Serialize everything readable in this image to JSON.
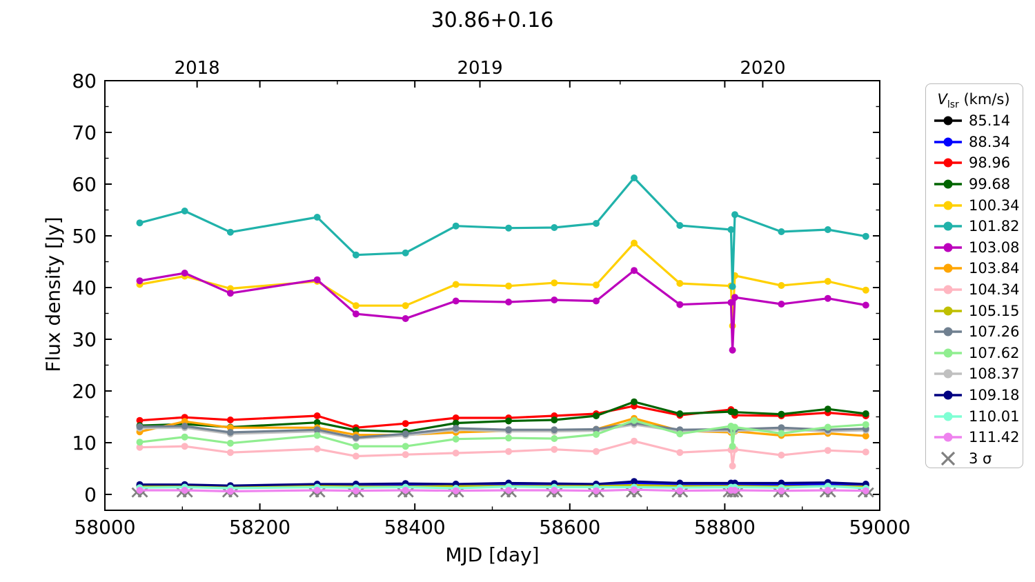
{
  "title": "30.86+0.16",
  "axes": {
    "xlabel": "MJD [day]",
    "ylabel": "Flux density [Jy]",
    "xlim": [
      58000,
      59000
    ],
    "ylim": [
      -3.07,
      80
    ],
    "x_major_ticks": [
      58000,
      58200,
      58400,
      58600,
      58800,
      59000
    ],
    "x_minor_ticks": [
      58100,
      58300,
      58500,
      58700,
      58900
    ],
    "y_major_ticks": [
      0,
      10,
      20,
      30,
      40,
      50,
      60,
      70,
      80
    ],
    "y_minor_ticks": [
      5,
      15,
      25,
      35,
      45,
      55,
      65,
      75
    ],
    "top_ticks": [
      {
        "label": "2018",
        "mjd": 58119
      },
      {
        "label": "2019",
        "mjd": 58484
      },
      {
        "label": "2020",
        "mjd": 58849
      }
    ],
    "top_minor_ticks": [
      58300,
      58665
    ]
  },
  "legend": {
    "title_var": "V",
    "title_sub": "lsr",
    "title_unit": " (km/s)"
  },
  "chart_data": {
    "type": "line",
    "title": "30.86+0.16",
    "xlabel": "MJD [day]",
    "ylabel": "Flux density [Jy]",
    "xlim": [
      58000,
      59000
    ],
    "ylim": [
      -3.07,
      80
    ],
    "legend_title": "Vlsr (km/s)",
    "series": [
      {
        "label": "85.14",
        "color": "#000000",
        "z": 1,
        "x": [
          58045,
          58103,
          58162,
          58274,
          58324,
          58388,
          58453,
          58521,
          58580,
          58634,
          58683,
          58742,
          58808,
          58813,
          58873,
          58933,
          58982
        ],
        "y": [
          1.7,
          1.8,
          1.6,
          1.8,
          1.8,
          1.9,
          1.8,
          2.0,
          1.9,
          1.8,
          2.2,
          2.0,
          2.0,
          2.0,
          2.0,
          2.1,
          1.8
        ]
      },
      {
        "label": "88.34",
        "color": "#0000FF",
        "z": 2,
        "x": [
          58045,
          58103,
          58162,
          58274,
          58324,
          58388,
          58453,
          58521,
          58580,
          58634,
          58683,
          58742,
          58808,
          58813,
          58873,
          58933,
          58982
        ],
        "y": [
          1.6,
          1.7,
          1.5,
          1.7,
          1.7,
          1.8,
          1.7,
          1.9,
          1.8,
          1.7,
          2.1,
          1.9,
          1.9,
          1.9,
          1.9,
          2.0,
          1.7
        ]
      },
      {
        "label": "98.96",
        "color": "#FF0000",
        "z": 3,
        "x": [
          58045,
          58103,
          58162,
          58274,
          58324,
          58388,
          58453,
          58521,
          58580,
          58634,
          58683,
          58742,
          58808,
          58813,
          58873,
          58933,
          58982
        ],
        "y": [
          14.3,
          14.9,
          14.4,
          15.2,
          12.9,
          13.7,
          14.8,
          14.8,
          15.2,
          15.6,
          17.1,
          15.3,
          16.4,
          15.3,
          15.2,
          15.8,
          15.2
        ]
      },
      {
        "label": "99.68",
        "color": "#006400",
        "z": 4,
        "x": [
          58045,
          58103,
          58162,
          58274,
          58324,
          58388,
          58453,
          58521,
          58580,
          58634,
          58683,
          58742,
          58808,
          58813,
          58873,
          58933,
          58982
        ],
        "y": [
          13.3,
          13.6,
          13.0,
          13.9,
          12.4,
          12.1,
          13.8,
          14.2,
          14.4,
          15.2,
          17.9,
          15.6,
          16.0,
          15.9,
          15.5,
          16.5,
          15.6
        ]
      },
      {
        "label": "100.34",
        "color": "#FFD000",
        "z": 5,
        "x": [
          58045,
          58103,
          58162,
          58274,
          58324,
          58388,
          58453,
          58521,
          58580,
          58634,
          58683,
          58742,
          58808,
          58810,
          58813,
          58873,
          58933,
          58982
        ],
        "y": [
          40.6,
          42.2,
          39.8,
          41.2,
          36.5,
          36.5,
          40.6,
          40.3,
          40.9,
          40.5,
          48.6,
          40.8,
          40.3,
          32.6,
          42.3,
          40.4,
          41.2,
          39.5
        ]
      },
      {
        "label": "101.82",
        "color": "#20B2AA",
        "z": 6,
        "x": [
          58045,
          58103,
          58162,
          58274,
          58324,
          58388,
          58453,
          58521,
          58580,
          58634,
          58683,
          58742,
          58808,
          58810,
          58813,
          58873,
          58933,
          58982
        ],
        "y": [
          52.5,
          54.8,
          50.7,
          53.6,
          46.3,
          46.7,
          51.9,
          51.5,
          51.6,
          52.4,
          61.2,
          52.0,
          51.2,
          40.2,
          54.1,
          50.8,
          51.2,
          49.9
        ]
      },
      {
        "label": "103.08",
        "color": "#BC00BC",
        "z": 7,
        "x": [
          58045,
          58103,
          58162,
          58274,
          58324,
          58388,
          58453,
          58521,
          58580,
          58634,
          58683,
          58742,
          58808,
          58810,
          58813,
          58873,
          58933,
          58982
        ],
        "y": [
          41.3,
          42.8,
          38.9,
          41.5,
          34.9,
          34.0,
          37.4,
          37.2,
          37.6,
          37.4,
          43.3,
          36.7,
          37.1,
          27.9,
          38.1,
          36.8,
          37.9,
          36.6
        ]
      },
      {
        "label": "103.84",
        "color": "#FFA500",
        "z": 8,
        "x": [
          58045,
          58103,
          58162,
          58274,
          58324,
          58388,
          58453,
          58521,
          58580,
          58634,
          58683,
          58742,
          58808,
          58813,
          58873,
          58933,
          58982
        ],
        "y": [
          12.1,
          14.1,
          12.9,
          12.9,
          11.5,
          11.5,
          12.0,
          12.3,
          12.2,
          12.6,
          14.7,
          12.3,
          12.0,
          12.2,
          11.4,
          11.8,
          11.3
        ]
      },
      {
        "label": "104.34",
        "color": "#FFB6C1",
        "z": 9,
        "x": [
          58045,
          58103,
          58162,
          58274,
          58324,
          58388,
          58453,
          58521,
          58580,
          58634,
          58683,
          58742,
          58808,
          58810,
          58813,
          58873,
          58933,
          58982
        ],
        "y": [
          9.1,
          9.3,
          8.1,
          8.8,
          7.4,
          7.7,
          8.0,
          8.3,
          8.7,
          8.3,
          10.3,
          8.1,
          8.6,
          5.5,
          8.7,
          7.6,
          8.5,
          8.2
        ]
      },
      {
        "label": "105.15",
        "color": "#BFBF00",
        "z": 10,
        "x": [
          58045,
          58103,
          58162,
          58274,
          58324,
          58388,
          58453,
          58521,
          58580,
          58634,
          58683,
          58742,
          58808,
          58813,
          58873,
          58933,
          58982
        ],
        "y": [
          1.5,
          1.6,
          1.5,
          1.6,
          1.5,
          1.5,
          1.6,
          1.6,
          1.6,
          1.6,
          1.8,
          1.6,
          1.6,
          1.6,
          1.5,
          1.6,
          1.5
        ]
      },
      {
        "label": "107.26",
        "color": "#708090",
        "z": 12,
        "x": [
          58045,
          58103,
          58162,
          58274,
          58324,
          58388,
          58453,
          58521,
          58580,
          58634,
          58683,
          58742,
          58808,
          58813,
          58873,
          58933,
          58982
        ],
        "y": [
          13.1,
          13.2,
          12.0,
          12.5,
          11.0,
          11.7,
          12.8,
          12.5,
          12.5,
          12.6,
          13.8,
          12.5,
          12.6,
          12.6,
          12.9,
          12.5,
          12.7
        ]
      },
      {
        "label": "107.62",
        "color": "#90EE90",
        "z": 13,
        "x": [
          58045,
          58103,
          58162,
          58274,
          58324,
          58388,
          58453,
          58521,
          58580,
          58634,
          58683,
          58742,
          58808,
          58810,
          58813,
          58873,
          58933,
          58982
        ],
        "y": [
          10.1,
          11.1,
          9.9,
          11.4,
          9.3,
          9.3,
          10.7,
          10.9,
          10.8,
          11.6,
          14.3,
          11.7,
          13.2,
          9.3,
          13.0,
          11.8,
          13.0,
          13.5
        ]
      },
      {
        "label": "108.37",
        "color": "#C0C0C0",
        "z": 11,
        "x": [
          58045,
          58103,
          58162,
          58274,
          58324,
          58388,
          58453,
          58521,
          58580,
          58634,
          58683,
          58742,
          58808,
          58813,
          58873,
          58933,
          58982
        ],
        "y": [
          12.8,
          12.9,
          11.7,
          12.2,
          10.8,
          11.4,
          12.5,
          12.2,
          12.2,
          12.3,
          13.5,
          12.2,
          12.3,
          12.3,
          12.6,
          12.2,
          12.4
        ]
      },
      {
        "label": "109.18",
        "color": "#000080",
        "z": 14,
        "x": [
          58045,
          58103,
          58162,
          58274,
          58324,
          58388,
          58453,
          58521,
          58580,
          58634,
          58683,
          58742,
          58808,
          58813,
          58873,
          58933,
          58982
        ],
        "y": [
          1.9,
          1.9,
          1.7,
          2.0,
          2.0,
          2.1,
          2.0,
          2.2,
          2.1,
          2.0,
          2.5,
          2.2,
          2.2,
          2.2,
          2.2,
          2.3,
          2.0
        ]
      },
      {
        "label": "110.01",
        "color": "#7FFFD4",
        "z": 15,
        "x": [
          58045,
          58103,
          58162,
          58274,
          58324,
          58388,
          58453,
          58521,
          58580,
          58634,
          58683,
          58742,
          58808,
          58813,
          58873,
          58933,
          58982
        ],
        "y": [
          1.3,
          1.4,
          1.2,
          1.4,
          1.3,
          1.4,
          1.2,
          1.5,
          1.4,
          1.4,
          1.4,
          1.3,
          1.4,
          1.4,
          1.3,
          1.6,
          1.2
        ]
      },
      {
        "label": "111.42",
        "color": "#EE82EE",
        "z": 16,
        "x": [
          58045,
          58103,
          58162,
          58274,
          58324,
          58388,
          58453,
          58521,
          58580,
          58634,
          58683,
          58742,
          58808,
          58813,
          58873,
          58933,
          58982
        ],
        "y": [
          0.8,
          0.8,
          0.6,
          0.8,
          0.7,
          0.8,
          0.7,
          0.8,
          0.8,
          0.7,
          0.9,
          0.7,
          0.8,
          0.8,
          0.7,
          0.8,
          0.7
        ]
      }
    ],
    "sigma": {
      "label": "3 σ",
      "color": "#808080",
      "y": 0.38,
      "x": [
        58041,
        58049,
        58099,
        58107,
        58158,
        58166,
        58270,
        58278,
        58320,
        58328,
        58384,
        58392,
        58449,
        58457,
        58517,
        58525,
        58576,
        58584,
        58630,
        58638,
        58679,
        58687,
        58738,
        58746,
        58804,
        58812,
        58809,
        58817,
        58869,
        58877,
        58929,
        58937,
        58978,
        58986
      ]
    }
  }
}
